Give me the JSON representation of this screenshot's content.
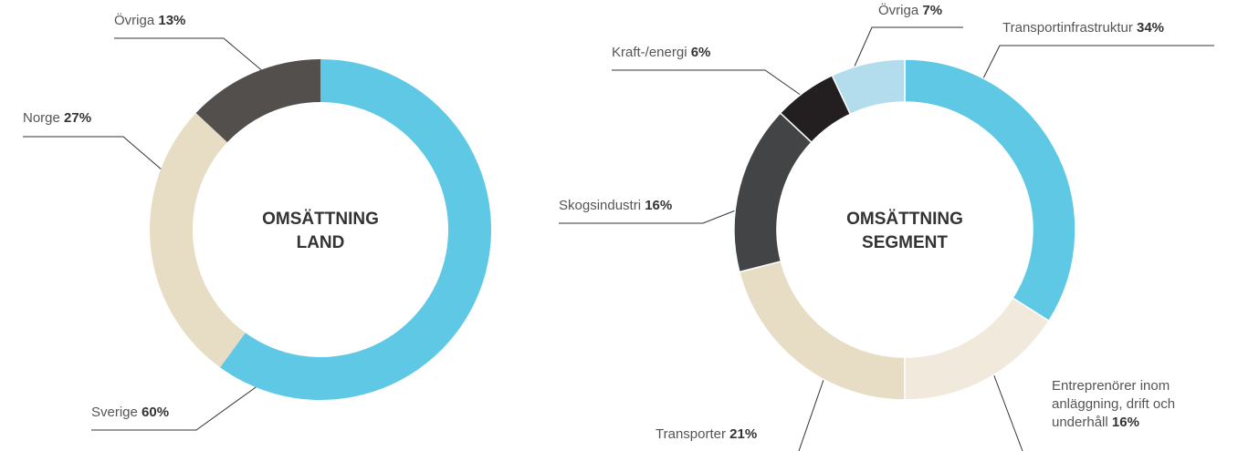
{
  "chart_data": [
    {
      "type": "pie",
      "title": "OMSÄTTNING LAND",
      "categories": [
        "Sverige",
        "Norge",
        "Övriga"
      ],
      "values": [
        60,
        27,
        13
      ],
      "value_labels": [
        "60%",
        "27%",
        "13%"
      ],
      "colors": [
        "#5fc8e5",
        "#e6ddc4",
        "#534f4c"
      ]
    },
    {
      "type": "pie",
      "title": "OMSÄTTNING SEGMENT",
      "categories": [
        "Transportinfrastruktur",
        "Entreprenörer inom anläggning, drift och underhåll",
        "Transporter",
        "Skogsindustri",
        "Kraft-/energi",
        "Övriga"
      ],
      "values": [
        34,
        16,
        21,
        16,
        6,
        7
      ],
      "value_labels": [
        "34%",
        "16%",
        "21%",
        "16%",
        "6%",
        "7%"
      ],
      "colors": [
        "#5fc8e5",
        "#f1eadc",
        "#e6ddc4",
        "#434446",
        "#231f20",
        "#b3ddec"
      ]
    }
  ]
}
